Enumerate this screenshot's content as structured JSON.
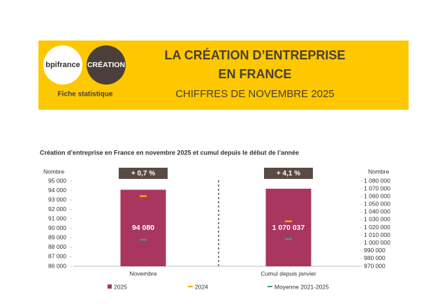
{
  "header": {
    "logos": [
      "bpifrance",
      "CRÉATION"
    ],
    "caption": "Fiche statistique",
    "title": [
      "LA CRÉATION D’ENTREPRISE",
      "EN FRANCE"
    ],
    "subtitle": "CHIFFRES DE NOVEMBRE 2025"
  },
  "chart_data": {
    "type": "bar",
    "title": "Création d’entreprise en France en novembre 2025 et cumul depuis le début de l’année",
    "categories": [
      "Novembre",
      "Cumul depuis janvier"
    ],
    "category_axis": [
      "y",
      "y2"
    ],
    "annotations": [
      "+ 0,7 %",
      "+ 4,1 %"
    ],
    "ylabel": "Nombre",
    "y2label": "Nombre",
    "ylim": [
      86000,
      95000
    ],
    "yticks": [
      {
        "value": 86000,
        "label": "86 000"
      },
      {
        "value": 87000,
        "label": "87 000"
      },
      {
        "value": 88000,
        "label": "88 000"
      },
      {
        "value": 89000,
        "label": "89 000"
      },
      {
        "value": 90000,
        "label": "90 000"
      },
      {
        "value": 91000,
        "label": "91 000"
      },
      {
        "value": 92000,
        "label": "92 000"
      },
      {
        "value": 93000,
        "label": "93 000"
      },
      {
        "value": 94000,
        "label": "94 000"
      },
      {
        "value": 95000,
        "label": "95 000"
      }
    ],
    "y2lim": [
      970000,
      1080000
    ],
    "y2ticks": [
      {
        "value": 970000,
        "label": "970 000"
      },
      {
        "value": 980000,
        "label": "980 000"
      },
      {
        "value": 990000,
        "label": "990 000"
      },
      {
        "value": 1000000,
        "label": "1 000 000"
      },
      {
        "value": 1010000,
        "label": "1 010 000"
      },
      {
        "value": 1020000,
        "label": "1 020 000"
      },
      {
        "value": 1030000,
        "label": "1 030 000"
      },
      {
        "value": 1040000,
        "label": "1 040 000"
      },
      {
        "value": 1050000,
        "label": "1 050 000"
      },
      {
        "value": 1060000,
        "label": "1 060 000"
      },
      {
        "value": 1070000,
        "label": "1 070 000"
      },
      {
        "value": 1080000,
        "label": "1 080 000"
      }
    ],
    "series": [
      {
        "name": "2025",
        "kind": "bar",
        "color": "#a8365e",
        "values": [
          94080,
          1070037
        ],
        "value_labels": [
          "94 080",
          "1 070 037"
        ]
      },
      {
        "name": "2024",
        "kind": "dash",
        "color": "#f5a800",
        "values": [
          93400,
          1028000
        ]
      },
      {
        "name": "Moyenne 2021-2025",
        "kind": "dash",
        "color": "#3a9c8c",
        "values": [
          88800,
          1005000
        ]
      }
    ]
  }
}
